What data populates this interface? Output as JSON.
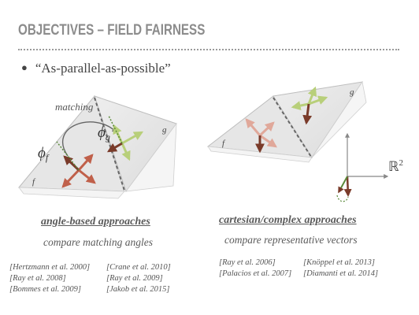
{
  "slide": {
    "title": "OBJECTIVES – FIELD FAIRNESS",
    "bullet": "“As-parallel-as-possible”"
  },
  "diagram": {
    "matching_label": "matching",
    "phi_f": "ϕ",
    "phi_f_sub": "f",
    "phi_g": "ϕ",
    "phi_g_sub": "g",
    "face_f": "f",
    "face_g": "g",
    "face_f_right": "f",
    "face_g_right": "g",
    "r2": "ℝ",
    "r2_sup": "2"
  },
  "left": {
    "heading": "angle-based approaches",
    "subtitle": "compare matching angles",
    "refs": [
      "[Hertzmann et al. 2000]",
      "[Crane et al. 2010]",
      "[Ray et al. 2008]",
      "[Ray et al. 2009]",
      "[Bommes et al. 2009]",
      "[Jakob et al. 2015]"
    ]
  },
  "right": {
    "heading": "cartesian/complex approaches",
    "subtitle": "compare representative vectors",
    "refs": [
      "[Ray et al. 2006]",
      "[Knöppel et al. 2013]",
      "[Palacios et al. 2007]",
      "[Diamanti et al. 2014]"
    ]
  },
  "colors": {
    "title": "#8c8c8c",
    "cross_f": "#c0604a",
    "cross_g_light": "#b8cf7a",
    "cross_g_dark": "#7a3b2a",
    "pink": "#e0a89a",
    "dotted_green": "#5a8a3a"
  }
}
